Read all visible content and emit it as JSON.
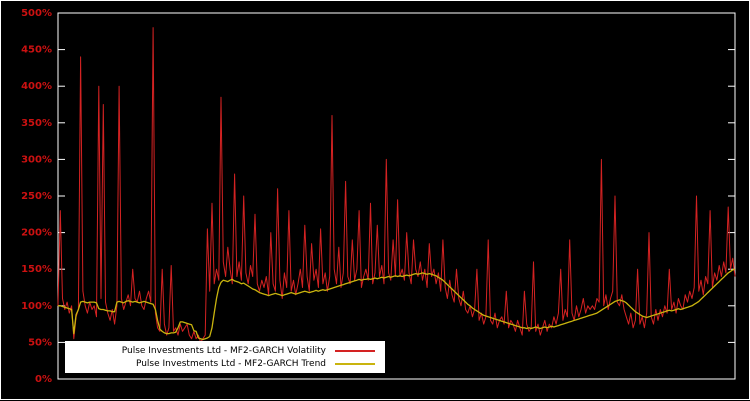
{
  "chart_data": {
    "type": "line",
    "title": "",
    "xlabel": "",
    "ylabel": "",
    "ylim": [
      0,
      500
    ],
    "ytick_values": [
      0,
      50,
      100,
      150,
      200,
      250,
      300,
      350,
      400,
      450,
      500
    ],
    "ytick_labels": [
      "0%",
      "50%",
      "100%",
      "150%",
      "200%",
      "250%",
      "300%",
      "350%",
      "400%",
      "450%",
      "500%"
    ],
    "x_tick_labels_visible": false,
    "grid": false,
    "background_color": "#000000",
    "frame_color": "#ffffff",
    "tick_label_color": "#cc1111",
    "legend_position": "bottom-left-inside",
    "legend_background": "#ffffff",
    "legend_text_color": "#000000",
    "series": [
      {
        "name": "Pulse Investments Ltd - MF2-GARCH Volatility",
        "color": "#d42222",
        "width": 1,
        "values": [
          100,
          230,
          110,
          95,
          105,
          90,
          100,
          55,
          85,
          95,
          440,
          120,
          100,
          90,
          105,
          95,
          100,
          85,
          400,
          110,
          375,
          105,
          90,
          80,
          95,
          75,
          100,
          400,
          110,
          95,
          105,
          115,
          100,
          150,
          110,
          105,
          120,
          100,
          95,
          110,
          120,
          105,
          480,
          90,
          70,
          65,
          150,
          75,
          60,
          70,
          155,
          65,
          70,
          60,
          75,
          65,
          70,
          75,
          60,
          55,
          65,
          55,
          60,
          50,
          55,
          60,
          205,
          120,
          240,
          130,
          150,
          135,
          385,
          160,
          140,
          180,
          150,
          130,
          280,
          140,
          160,
          135,
          250,
          145,
          130,
          155,
          140,
          225,
          130,
          120,
          135,
          125,
          140,
          115,
          200,
          130,
          120,
          260,
          135,
          110,
          145,
          125,
          230,
          120,
          135,
          115,
          130,
          150,
          125,
          210,
          140,
          120,
          185,
          135,
          150,
          125,
          205,
          130,
          145,
          120,
          140,
          360,
          150,
          130,
          180,
          125,
          145,
          270,
          140,
          130,
          190,
          135,
          150,
          230,
          125,
          140,
          150,
          135,
          240,
          130,
          145,
          210,
          140,
          155,
          130,
          300,
          145,
          135,
          190,
          140,
          245,
          140,
          150,
          135,
          200,
          145,
          130,
          190,
          150,
          140,
          160,
          135,
          150,
          125,
          185,
          140,
          150,
          130,
          145,
          120,
          190,
          125,
          110,
          135,
          115,
          105,
          150,
          110,
          100,
          120,
          95,
          90,
          100,
          85,
          95,
          150,
          80,
          90,
          75,
          85,
          190,
          80,
          75,
          90,
          70,
          80,
          85,
          75,
          120,
          70,
          80,
          75,
          65,
          80,
          70,
          60,
          120,
          75,
          65,
          70,
          160,
          65,
          75,
          60,
          70,
          80,
          65,
          75,
          70,
          85,
          75,
          90,
          150,
          80,
          95,
          85,
          190,
          90,
          80,
          100,
          85,
          95,
          110,
          90,
          100,
          95,
          100,
          95,
          110,
          105,
          300,
          100,
          115,
          95,
          110,
          120,
          250,
          105,
          100,
          115,
          95,
          85,
          75,
          90,
          70,
          80,
          150,
          75,
          85,
          70,
          90,
          200,
          85,
          75,
          95,
          80,
          95,
          85,
          100,
          90,
          150,
          95,
          105,
          90,
          110,
          100,
          95,
          115,
          105,
          120,
          110,
          125,
          250,
          120,
          135,
          115,
          140,
          130,
          230,
          125,
          145,
          135,
          155,
          140,
          160,
          145,
          235,
          150,
          165,
          140
        ]
      },
      {
        "name": "Pulse Investments Ltd - MF2-GARCH Trend",
        "color": "#c9b40e",
        "width": 1.3,
        "values": [
          100,
          100,
          99,
          98,
          97,
          96,
          95,
          62,
          88,
          95,
          105,
          106,
          105,
          104,
          105,
          105,
          105,
          104,
          96,
          95,
          95,
          94,
          93,
          93,
          92,
          92,
          105,
          106,
          105,
          104,
          106,
          107,
          106,
          105,
          106,
          105,
          104,
          105,
          106,
          105,
          104,
          103,
          102,
          95,
          80,
          68,
          65,
          63,
          62,
          62,
          63,
          63,
          64,
          70,
          78,
          78,
          77,
          76,
          75,
          74,
          66,
          65,
          56,
          55,
          54,
          55,
          56,
          58,
          70,
          90,
          110,
          125,
          132,
          135,
          134,
          133,
          135,
          136,
          134,
          133,
          132,
          130,
          131,
          129,
          127,
          125,
          123,
          122,
          120,
          118,
          117,
          116,
          115,
          114,
          115,
          116,
          117,
          116,
          115,
          114,
          115,
          116,
          117,
          118,
          117,
          116,
          117,
          118,
          119,
          120,
          119,
          118,
          119,
          120,
          121,
          120,
          121,
          122,
          121,
          122,
          123,
          124,
          125,
          126,
          127,
          128,
          129,
          130,
          131,
          132,
          133,
          134,
          135,
          136,
          135,
          136,
          136,
          137,
          136,
          137,
          138,
          137,
          138,
          139,
          138,
          139,
          140,
          139,
          140,
          141,
          140,
          141,
          140,
          141,
          142,
          141,
          142,
          143,
          144,
          143,
          144,
          145,
          144,
          143,
          144,
          143,
          142,
          141,
          139,
          137,
          135,
          132,
          129,
          126,
          123,
          120,
          117,
          114,
          111,
          108,
          105,
          102,
          100,
          97,
          95,
          93,
          91,
          89,
          87,
          86,
          85,
          84,
          83,
          82,
          81,
          80,
          79,
          78,
          77,
          76,
          75,
          74,
          73,
          72,
          71,
          70,
          70,
          69,
          70,
          69,
          70,
          71,
          70,
          69,
          70,
          71,
          70,
          71,
          72,
          71,
          72,
          73,
          74,
          75,
          76,
          77,
          78,
          79,
          80,
          81,
          82,
          83,
          84,
          85,
          86,
          87,
          88,
          89,
          90,
          92,
          94,
          96,
          98,
          100,
          102,
          104,
          106,
          107,
          108,
          107,
          106,
          104,
          101,
          98,
          95,
          92,
          90,
          88,
          86,
          85,
          84,
          85,
          86,
          87,
          88,
          89,
          90,
          91,
          92,
          93,
          94,
          93,
          94,
          95,
          96,
          95,
          96,
          97,
          98,
          99,
          100,
          102,
          104,
          106,
          109,
          112,
          115,
          118,
          121,
          124,
          127,
          130,
          133,
          136,
          139,
          142,
          145,
          147,
          149,
          150
        ]
      }
    ]
  }
}
